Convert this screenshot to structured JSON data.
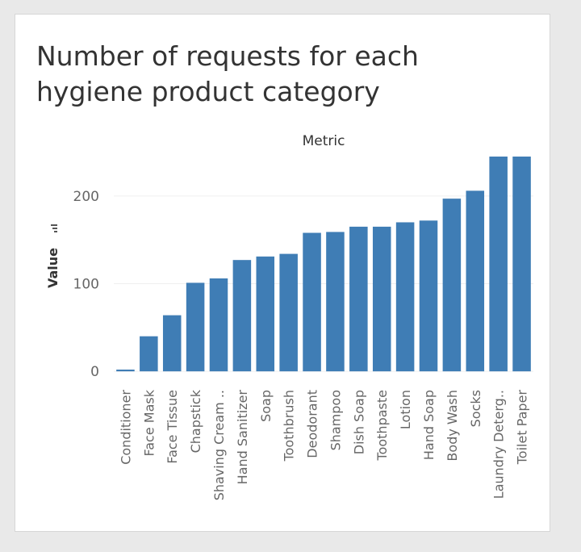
{
  "title": "Number of requests for each hygiene product category",
  "colors": {
    "bar": "#3f7db5",
    "axis_text": "#666666",
    "grid": "#efefef"
  },
  "chart_data": {
    "type": "bar",
    "title": "Number of requests for each hygiene product category",
    "header": "Metric",
    "ylabel": "Value",
    "ylim": [
      -10,
      245
    ],
    "yticks": [
      0,
      100,
      200
    ],
    "grid": true,
    "categories": [
      "Conditioner",
      "Face Mask",
      "Face Tissue",
      "Chapstick",
      "Shaving Cream ..",
      "Hand Sanitizer",
      "Soap",
      "Toothbrush",
      "Deodorant",
      "Shampoo",
      "Dish Soap",
      "Toothpaste",
      "Lotion",
      "Hand Soap",
      "Body Wash",
      "Socks",
      "Laundry Deterg..",
      "Toilet Paper"
    ],
    "values": [
      2,
      40,
      64,
      101,
      106,
      127,
      131,
      134,
      158,
      159,
      165,
      165,
      170,
      172,
      197,
      206,
      245,
      245
    ]
  }
}
